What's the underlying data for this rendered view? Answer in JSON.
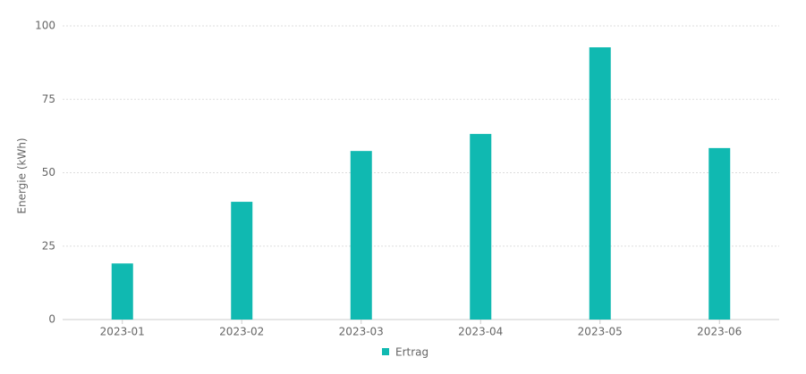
{
  "chart_data": {
    "type": "bar",
    "y_label": "Energie  (kWh)",
    "categories": [
      "2023-01",
      "2023-02",
      "2023-03",
      "2023-04",
      "2023-05",
      "2023-06"
    ],
    "series": [
      {
        "name": "Ertrag",
        "color": "#10b9b1",
        "values": [
          19.1,
          40.1,
          57.4,
          63.2,
          92.7,
          58.4
        ]
      }
    ],
    "ylim": [
      0,
      100
    ],
    "yticks": [
      0,
      25,
      50,
      75,
      100
    ],
    "grid": true,
    "legend": "bottom"
  }
}
